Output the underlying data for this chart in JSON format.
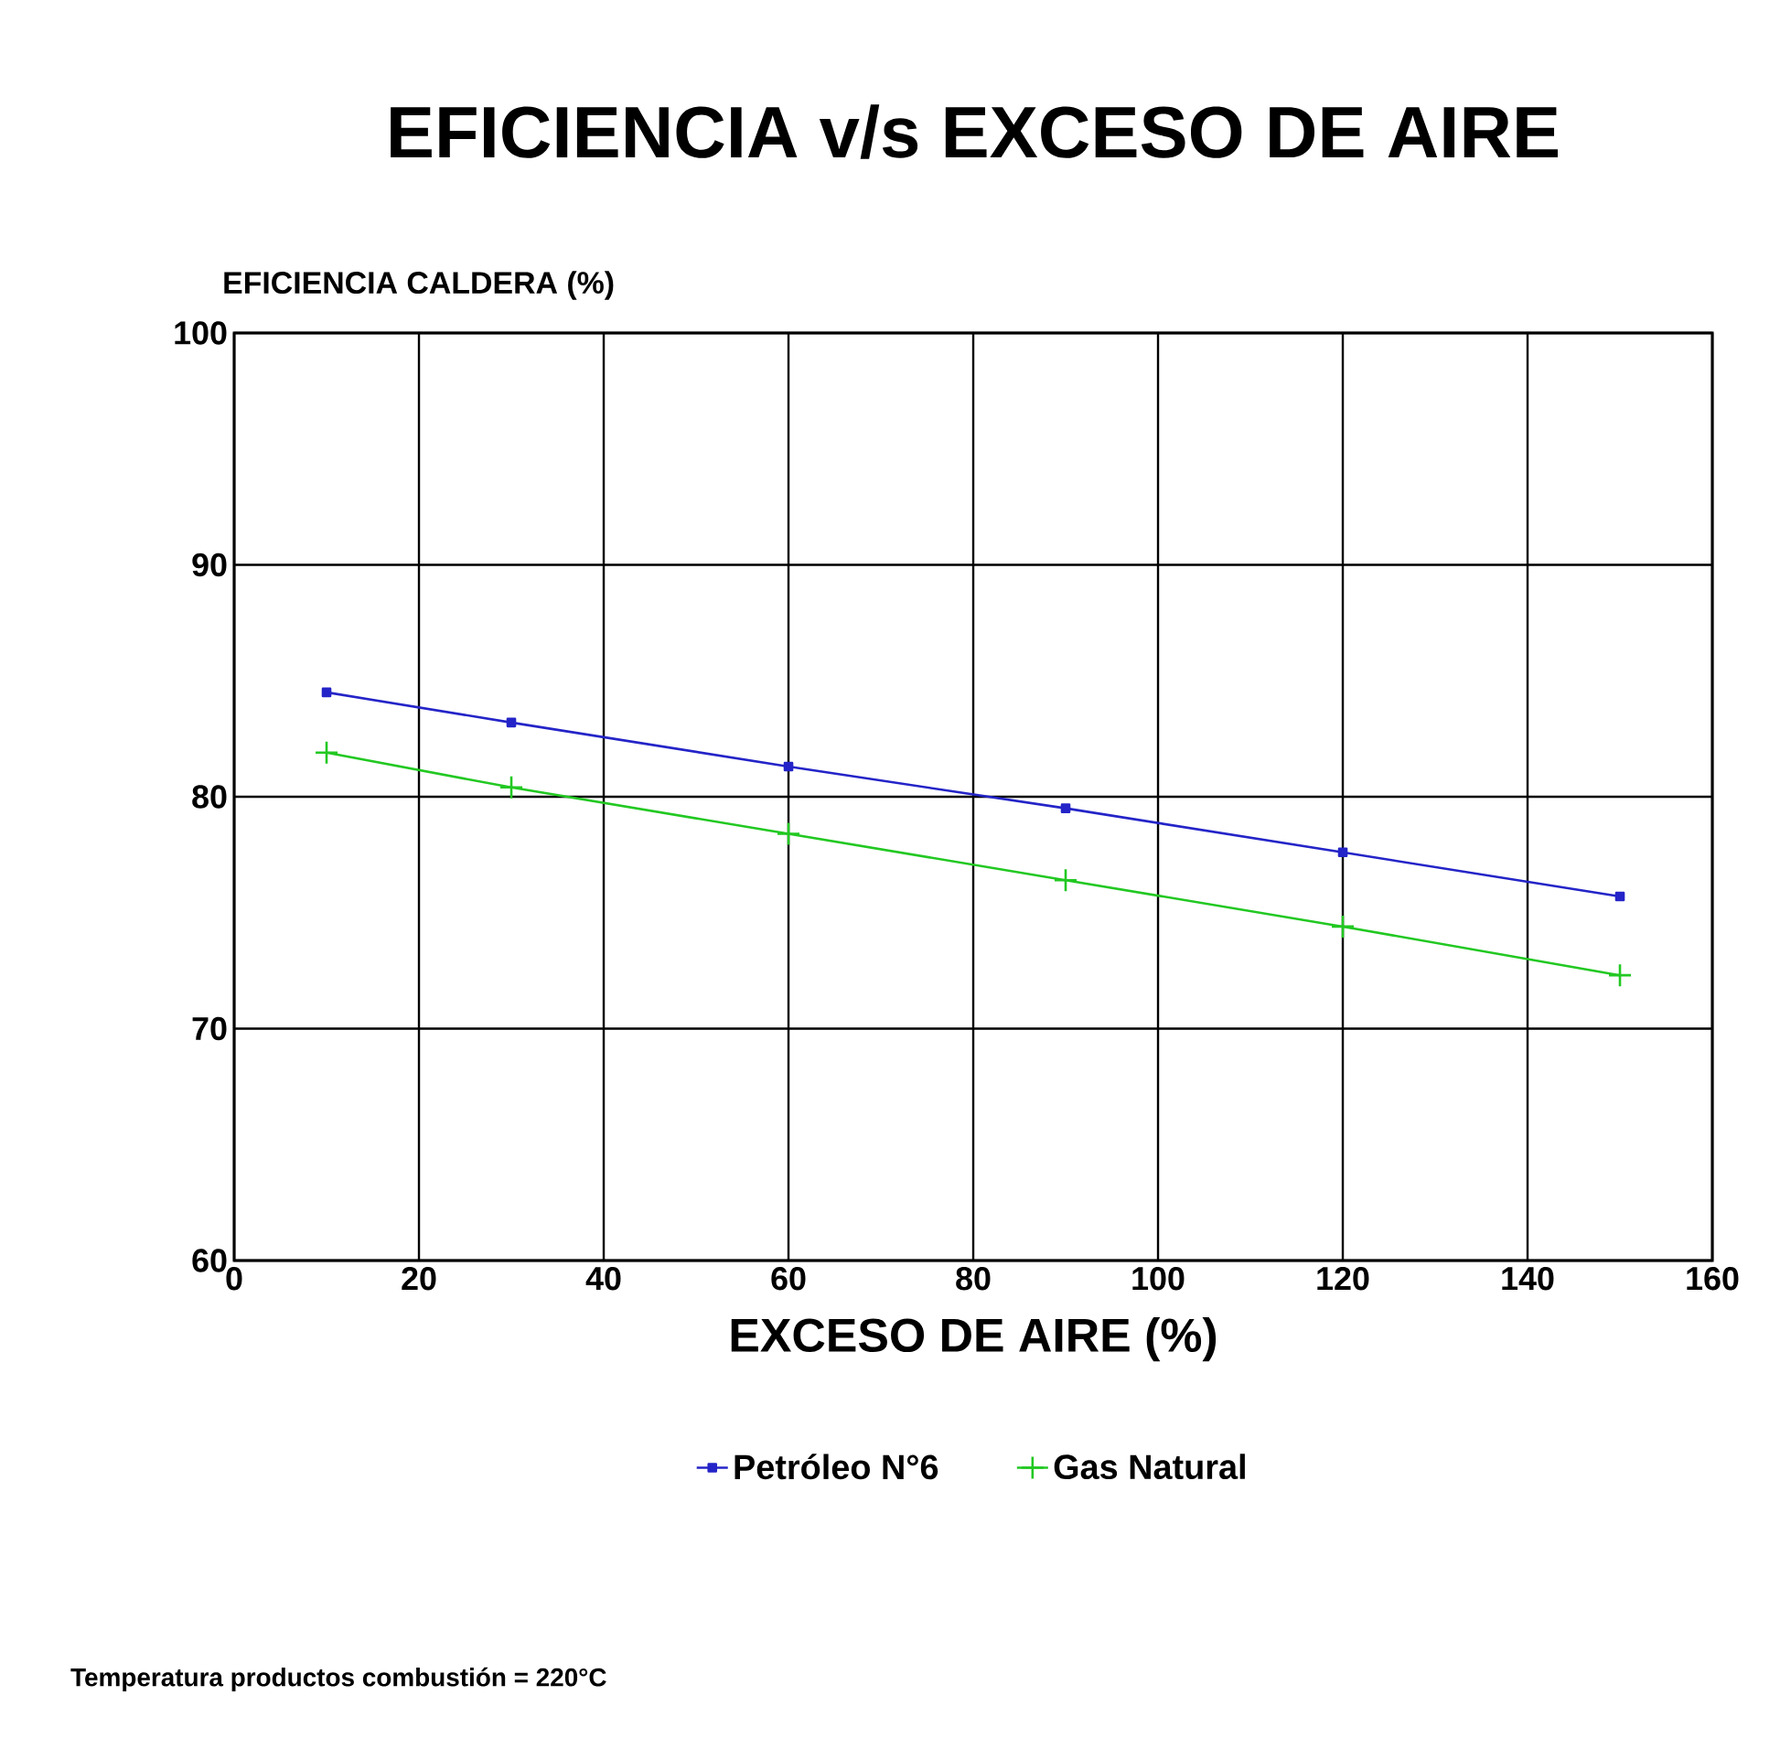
{
  "chart_data": {
    "type": "line",
    "title": "EFICIENCIA v/s EXCESO DE AIRE",
    "ylabel": "EFICIENCIA CALDERA (%)",
    "xlabel": "EXCESO DE AIRE (%)",
    "x": [
      10,
      30,
      60,
      90,
      120,
      150
    ],
    "series": [
      {
        "name": "Petróleo N°6",
        "color": "#2424c8",
        "marker": "square",
        "values": [
          84.5,
          83.2,
          81.3,
          79.5,
          77.6,
          75.7
        ]
      },
      {
        "name": "Gas Natural",
        "color": "#22c822",
        "marker": "cross",
        "values": [
          81.9,
          80.4,
          78.4,
          76.4,
          74.4,
          72.3
        ]
      }
    ],
    "xlim": [
      0,
      160
    ],
    "xticks": [
      0,
      20,
      40,
      60,
      80,
      100,
      120,
      140,
      160
    ],
    "ylim": [
      60,
      100
    ],
    "yticks": [
      60,
      70,
      80,
      90,
      100
    ],
    "grid": true,
    "legend": "bottom",
    "line_style": "solid",
    "annotations": [
      "Temperatura productos combustión = 220°C"
    ]
  }
}
